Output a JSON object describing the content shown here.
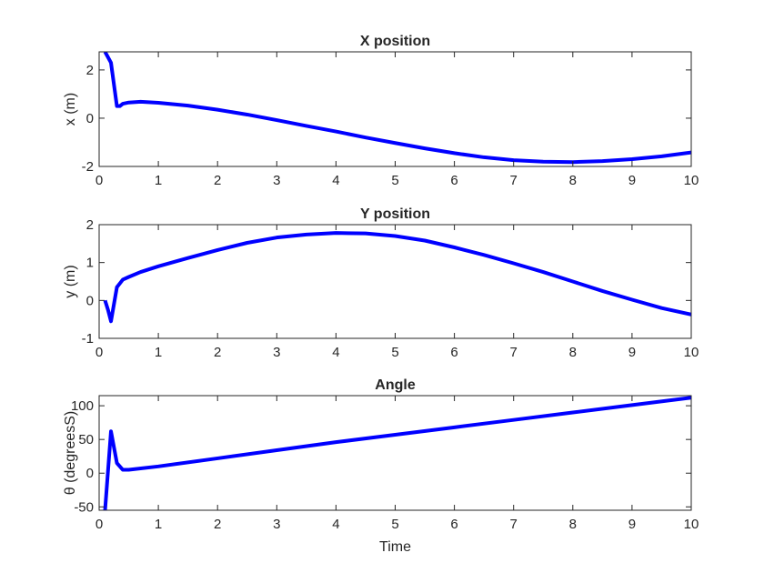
{
  "chart_data": [
    {
      "type": "line",
      "title": "X position",
      "xlabel": "",
      "ylabel": "x (m)",
      "xlim": [
        0,
        10
      ],
      "ylim": [
        -2,
        2.75
      ],
      "xticks": [
        0,
        1,
        2,
        3,
        4,
        5,
        6,
        7,
        8,
        9,
        10
      ],
      "yticks": [
        -2,
        0,
        2
      ],
      "grid": false,
      "color": "#0000FF",
      "series": [
        {
          "x": [
            0.1,
            0.2,
            0.3,
            0.35,
            0.4,
            0.5,
            0.7,
            1.0,
            1.5,
            2.0,
            2.5,
            3.0,
            3.5,
            4.0,
            4.5,
            5.0,
            5.5,
            6.0,
            6.5,
            7.0,
            7.5,
            8.0,
            8.5,
            9.0,
            9.5,
            10.0
          ],
          "y": [
            2.75,
            2.3,
            0.5,
            0.5,
            0.6,
            0.65,
            0.68,
            0.64,
            0.52,
            0.35,
            0.15,
            -0.08,
            -0.32,
            -0.55,
            -0.8,
            -1.03,
            -1.25,
            -1.45,
            -1.62,
            -1.74,
            -1.8,
            -1.82,
            -1.78,
            -1.7,
            -1.58,
            -1.42
          ]
        }
      ]
    },
    {
      "type": "line",
      "title": "Y position",
      "xlabel": "",
      "ylabel": "y (m)",
      "xlim": [
        0,
        10
      ],
      "ylim": [
        -1,
        2
      ],
      "xticks": [
        0,
        1,
        2,
        3,
        4,
        5,
        6,
        7,
        8,
        9,
        10
      ],
      "yticks": [
        -1,
        0,
        1,
        2
      ],
      "grid": false,
      "color": "#0000FF",
      "series": [
        {
          "x": [
            0.1,
            0.15,
            0.2,
            0.3,
            0.4,
            0.5,
            0.7,
            1.0,
            1.5,
            2.0,
            2.5,
            3.0,
            3.5,
            4.0,
            4.5,
            5.0,
            5.5,
            6.0,
            6.5,
            7.0,
            7.5,
            8.0,
            8.5,
            9.0,
            9.5,
            10.0
          ],
          "y": [
            0.0,
            -0.25,
            -0.55,
            0.35,
            0.55,
            0.62,
            0.75,
            0.9,
            1.12,
            1.33,
            1.52,
            1.66,
            1.74,
            1.78,
            1.77,
            1.7,
            1.58,
            1.4,
            1.2,
            0.98,
            0.75,
            0.5,
            0.25,
            0.02,
            -0.2,
            -0.37
          ]
        }
      ]
    },
    {
      "type": "line",
      "title": "Angle",
      "xlabel": "Time",
      "ylabel": "θ (degreesS)",
      "xlim": [
        0,
        10
      ],
      "ylim": [
        -55,
        115
      ],
      "xticks": [
        0,
        1,
        2,
        3,
        4,
        5,
        6,
        7,
        8,
        9,
        10
      ],
      "yticks": [
        -50,
        0,
        50,
        100
      ],
      "grid": false,
      "color": "#0000FF",
      "series": [
        {
          "x": [
            0.1,
            0.2,
            0.3,
            0.4,
            0.5,
            1.0,
            2.0,
            3.0,
            4.0,
            5.0,
            6.0,
            7.0,
            8.0,
            9.0,
            10.0
          ],
          "y": [
            -55,
            62,
            15,
            5,
            5,
            10,
            22,
            34,
            46,
            57,
            68,
            79,
            90,
            101,
            112
          ]
        }
      ]
    }
  ]
}
